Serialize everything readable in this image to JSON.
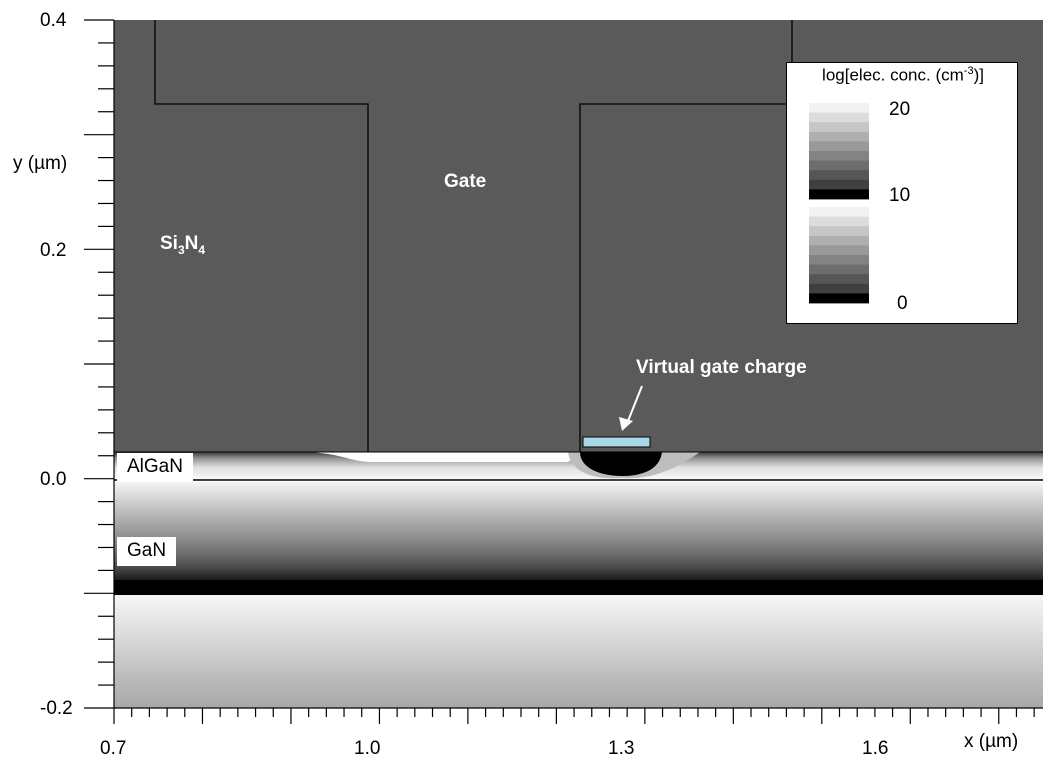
{
  "chart_data": {
    "type": "heatmap",
    "title": "",
    "xlabel": "x (µm)",
    "ylabel": "y (µm)",
    "xlim": [
      0.7,
      1.75
    ],
    "ylim": [
      -0.2,
      0.4
    ],
    "x_tick_labels": [
      "0.7",
      "1.0",
      "1.3",
      "1.6"
    ],
    "y_tick_labels": [
      "0.4",
      "0.2",
      "0.0",
      "-0.2"
    ],
    "regions": {
      "si3n4": {
        "label_main": "Si",
        "sub1": "3",
        "label_mid": "N",
        "sub2": "4"
      },
      "gate": {
        "label": "Gate",
        "x_range": [
          1.0,
          1.25
        ]
      },
      "algan": {
        "label": "AlGaN",
        "y_range": [
          0.0,
          0.026
        ]
      },
      "gan": {
        "label": "GaN",
        "y_range": [
          -0.2,
          0.0
        ]
      }
    },
    "annotation": "Virtual gate charge",
    "virtual_gate_charge": {
      "x_range": [
        1.25,
        1.33
      ],
      "y_range": [
        0.026,
        0.035
      ]
    },
    "legend": {
      "title_main": "log[elec. conc. (cm",
      "title_sup": "-3",
      "title_end": ")]",
      "scale_labels": [
        "20",
        "10",
        "0"
      ],
      "colormap": "grayscale, repeating every 10 decades"
    },
    "colors": {
      "passivation": "#5a5a5a",
      "virtual_gate": "#a9d8e6",
      "channel": "#000000"
    }
  }
}
